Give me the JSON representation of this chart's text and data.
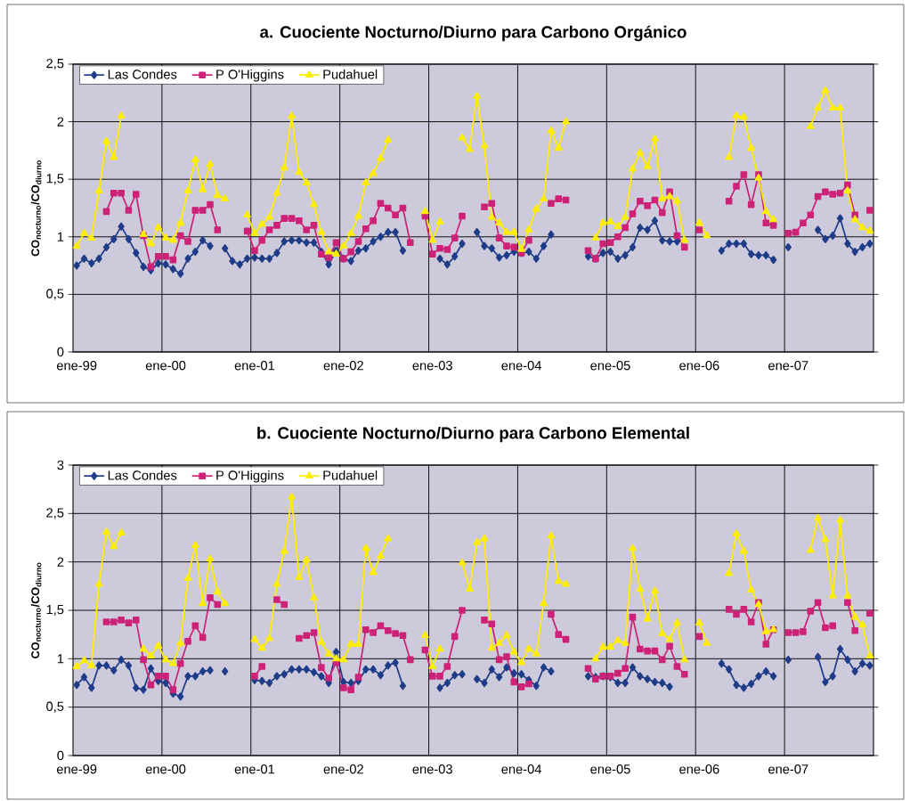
{
  "chart_data": [
    {
      "type": "line",
      "title": "a. Cuociente Nocturno/Diurno para Carbono Orgánico",
      "ylabel": "CO$_{nocturno}$/CO$_{diurno}$",
      "categories": [
        "ene-99",
        null,
        null,
        null,
        null,
        null,
        null,
        null,
        null,
        null,
        null,
        null,
        "ene-00",
        null,
        null,
        null,
        null,
        null,
        null,
        null,
        null,
        null,
        null,
        null,
        "ene-01",
        null,
        null,
        null,
        null,
        null,
        null,
        null,
        null,
        null,
        null,
        null,
        "ene-02",
        null,
        null,
        null,
        null,
        null,
        null,
        null,
        null,
        null,
        null,
        null,
        "ene-03",
        null,
        null,
        null,
        null,
        null,
        null,
        null,
        null,
        null,
        null,
        null,
        "ene-04",
        null,
        null,
        null,
        null,
        null,
        null,
        null,
        null,
        null,
        null,
        null,
        "ene-05",
        null,
        null,
        null,
        null,
        null,
        null,
        null,
        null,
        null,
        null,
        null,
        "ene-06",
        null,
        null,
        null,
        null,
        null,
        null,
        null,
        null,
        null,
        null,
        null,
        "ene-07",
        null,
        null,
        null,
        null,
        null,
        null,
        null,
        null,
        null,
        null,
        null
      ],
      "ylim": [
        0,
        2.5
      ],
      "yticks": [
        0,
        {
          "value": 0.5,
          "label": "0,5"
        },
        1,
        {
          "value": 1.5,
          "label": "1,5"
        },
        2,
        {
          "value": 2.5,
          "label": "2,5"
        }
      ],
      "grid": true,
      "legend": "top left",
      "line_style": "solid",
      "series": [
        {
          "name": "Las Condes",
          "color": "#1f3c88",
          "marker": "diamond",
          "values": [
            0.75,
            0.81,
            0.77,
            0.81,
            0.91,
            0.98,
            1.09,
            0.98,
            0.86,
            0.74,
            0.71,
            0.77,
            0.76,
            0.72,
            0.68,
            0.81,
            0.87,
            0.97,
            0.92,
            null,
            0.9,
            0.79,
            0.76,
            0.81,
            0.82,
            0.81,
            0.81,
            0.86,
            0.96,
            0.97,
            0.97,
            0.95,
            0.95,
            0.87,
            0.76,
            0.88,
            0.81,
            0.79,
            0.88,
            0.9,
            0.96,
            1.0,
            1.04,
            1.04,
            0.88,
            null,
            null,
            null,
            null,
            0.81,
            0.76,
            0.83,
            0.94,
            null,
            1.04,
            0.92,
            0.9,
            0.82,
            0.84,
            0.87,
            0.86,
            0.87,
            0.81,
            0.92,
            1.02,
            null,
            null,
            null,
            null,
            0.83,
            0.81,
            0.86,
            0.87,
            0.81,
            0.84,
            0.91,
            1.08,
            1.06,
            1.14,
            0.97,
            0.96,
            0.96,
            null,
            null,
            null,
            null,
            null,
            0.88,
            0.94,
            0.94,
            0.94,
            0.85,
            0.84,
            0.84,
            0.8,
            null,
            0.91,
            null,
            null,
            null,
            1.06,
            0.98,
            1.01,
            1.16,
            0.94,
            0.87,
            0.91,
            0.94
          ]
        },
        {
          "name": "P O'Higgins",
          "color": "#cc2277",
          "marker": "square",
          "values": [
            null,
            null,
            null,
            null,
            1.22,
            1.38,
            1.38,
            1.23,
            1.37,
            1.01,
            0.74,
            0.83,
            0.83,
            0.8,
            1.01,
            0.96,
            1.23,
            1.23,
            1.28,
            1.06,
            null,
            null,
            null,
            1.05,
            0.88,
            0.97,
            1.06,
            1.1,
            1.16,
            1.16,
            1.14,
            1.06,
            1.1,
            0.85,
            0.82,
            0.95,
            0.81,
            0.87,
            0.96,
            1.07,
            1.14,
            1.29,
            1.25,
            1.19,
            1.25,
            0.95,
            null,
            1.18,
            0.85,
            0.9,
            0.89,
            0.99,
            1.18,
            null,
            null,
            1.26,
            1.29,
            0.99,
            0.92,
            0.91,
            0.86,
            0.97,
            null,
            null,
            1.29,
            1.33,
            1.32,
            null,
            null,
            0.88,
            0.81,
            0.94,
            0.95,
            1.0,
            1.08,
            1.2,
            1.31,
            1.27,
            1.32,
            1.21,
            1.39,
            1.01,
            0.91,
            null,
            1.06,
            null,
            null,
            null,
            1.31,
            1.44,
            1.54,
            1.28,
            1.54,
            1.12,
            1.1,
            null,
            1.03,
            1.04,
            1.12,
            1.19,
            1.35,
            1.39,
            1.37,
            1.38,
            1.45,
            1.19,
            null,
            1.23
          ]
        },
        {
          "name": "Pudahuel",
          "color": "#ffee00",
          "marker": "triangle",
          "values": [
            0.92,
            1.03,
            0.99,
            1.4,
            1.83,
            1.69,
            2.05,
            null,
            null,
            1.02,
            0.94,
            1.08,
            0.99,
            0.97,
            1.12,
            1.4,
            1.67,
            1.41,
            1.63,
            1.36,
            1.33,
            null,
            null,
            1.19,
            1.03,
            1.11,
            1.17,
            1.38,
            1.6,
            2.05,
            1.56,
            1.47,
            1.28,
            1.04,
            0.87,
            0.85,
            0.92,
            1.03,
            1.18,
            1.47,
            1.55,
            1.68,
            1.84,
            null,
            null,
            null,
            null,
            1.22,
            0.97,
            1.13,
            null,
            null,
            1.86,
            1.76,
            2.22,
            1.79,
            1.17,
            1.12,
            1.04,
            1.04,
            0.89,
            1.06,
            1.24,
            1.33,
            1.92,
            1.77,
            2.0,
            null,
            null,
            null,
            0.99,
            1.12,
            1.13,
            1.09,
            1.17,
            1.59,
            1.73,
            1.61,
            1.85,
            1.33,
            1.35,
            1.31,
            0.97,
            null,
            1.12,
            1.01,
            null,
            null,
            1.69,
            2.05,
            2.04,
            1.77,
            1.51,
            1.22,
            1.15,
            null,
            null,
            null,
            null,
            1.96,
            2.12,
            2.27,
            2.12,
            2.12,
            1.4,
            1.15,
            1.08,
            1.05
          ]
        }
      ]
    },
    {
      "type": "line",
      "title": "b. Cuociente Nocturno/Diurno para Carbono Elemental",
      "ylabel": "CO$_{nocturno}$/CO$_{diurno}$",
      "categories": [
        "ene-99",
        null,
        null,
        null,
        null,
        null,
        null,
        null,
        null,
        null,
        null,
        null,
        "ene-00",
        null,
        null,
        null,
        null,
        null,
        null,
        null,
        null,
        null,
        null,
        null,
        "ene-01",
        null,
        null,
        null,
        null,
        null,
        null,
        null,
        null,
        null,
        null,
        null,
        "ene-02",
        null,
        null,
        null,
        null,
        null,
        null,
        null,
        null,
        null,
        null,
        null,
        "ene-03",
        null,
        null,
        null,
        null,
        null,
        null,
        null,
        null,
        null,
        null,
        null,
        "ene-04",
        null,
        null,
        null,
        null,
        null,
        null,
        null,
        null,
        null,
        null,
        null,
        "ene-05",
        null,
        null,
        null,
        null,
        null,
        null,
        null,
        null,
        null,
        null,
        null,
        "ene-06",
        null,
        null,
        null,
        null,
        null,
        null,
        null,
        null,
        null,
        null,
        null,
        "ene-07",
        null,
        null,
        null,
        null,
        null,
        null,
        null,
        null,
        null,
        null,
        null
      ],
      "ylim": [
        0,
        3
      ],
      "yticks": [
        0,
        {
          "value": 0.5,
          "label": "0,5"
        },
        1,
        {
          "value": 1.5,
          "label": "1,5"
        },
        2,
        {
          "value": 2.5,
          "label": "2,5"
        },
        3
      ],
      "grid": true,
      "legend": "top left",
      "line_style": "solid",
      "series": [
        {
          "name": "Las Condes",
          "color": "#1f3c88",
          "marker": "diamond",
          "values": [
            0.73,
            0.81,
            0.7,
            0.93,
            0.93,
            0.88,
            0.99,
            0.93,
            0.7,
            0.68,
            0.9,
            0.77,
            0.75,
            0.64,
            0.61,
            0.82,
            0.82,
            0.87,
            0.88,
            null,
            0.87,
            null,
            null,
            null,
            0.78,
            0.77,
            0.75,
            0.82,
            0.84,
            0.89,
            0.89,
            0.89,
            0.86,
            0.82,
            0.75,
            1.07,
            0.76,
            0.75,
            0.77,
            0.89,
            0.89,
            0.83,
            0.93,
            0.96,
            0.72,
            null,
            null,
            null,
            null,
            0.7,
            0.75,
            0.83,
            0.84,
            null,
            0.79,
            0.75,
            0.89,
            0.81,
            0.91,
            0.85,
            0.84,
            0.78,
            0.72,
            0.91,
            0.87,
            null,
            null,
            null,
            null,
            0.82,
            0.81,
            0.82,
            0.81,
            0.75,
            0.75,
            0.91,
            0.82,
            0.79,
            0.76,
            0.75,
            0.71,
            null,
            null,
            null,
            null,
            null,
            null,
            0.95,
            0.89,
            0.73,
            0.7,
            0.74,
            0.82,
            0.87,
            0.82,
            null,
            0.99,
            null,
            null,
            null,
            1.02,
            0.76,
            0.82,
            1.1,
            0.99,
            0.87,
            0.95,
            0.93
          ]
        },
        {
          "name": "P O'Higgins",
          "color": "#cc2277",
          "marker": "square",
          "values": [
            null,
            null,
            null,
            null,
            1.38,
            1.38,
            1.4,
            1.37,
            1.4,
            0.99,
            0.73,
            0.82,
            0.82,
            0.68,
            0.95,
            1.18,
            1.34,
            1.22,
            1.63,
            1.56,
            null,
            null,
            null,
            null,
            0.82,
            0.92,
            null,
            1.61,
            1.56,
            null,
            1.21,
            1.24,
            1.27,
            0.91,
            0.8,
            0.96,
            0.7,
            0.68,
            0.81,
            1.3,
            1.27,
            1.34,
            1.29,
            1.26,
            1.24,
            0.99,
            null,
            1.09,
            0.82,
            0.82,
            0.92,
            1.23,
            1.5,
            null,
            null,
            1.4,
            1.36,
            0.99,
            1.02,
            0.76,
            0.71,
            0.74,
            null,
            null,
            1.46,
            1.25,
            1.2,
            null,
            null,
            0.9,
            0.79,
            0.82,
            0.82,
            0.85,
            0.9,
            1.43,
            1.1,
            1.08,
            1.08,
            0.99,
            1.13,
            0.92,
            0.84,
            null,
            1.23,
            null,
            null,
            null,
            1.51,
            1.46,
            1.51,
            1.38,
            1.58,
            1.15,
            1.3,
            null,
            1.27,
            1.27,
            1.28,
            1.49,
            1.58,
            1.32,
            1.34,
            null,
            1.58,
            1.29,
            null,
            1.47
          ]
        },
        {
          "name": "Pudahuel",
          "color": "#ffee00",
          "marker": "triangle",
          "values": [
            0.92,
            0.98,
            0.93,
            1.77,
            2.31,
            2.16,
            2.3,
            null,
            null,
            1.1,
            1.03,
            1.13,
            0.99,
            0.95,
            1.16,
            1.83,
            2.17,
            1.57,
            2.03,
            1.69,
            1.57,
            null,
            null,
            null,
            1.2,
            1.11,
            1.21,
            1.77,
            2.11,
            2.67,
            1.84,
            2.02,
            1.63,
            1.17,
            1.05,
            1.0,
            0.99,
            1.15,
            1.15,
            2.14,
            1.89,
            2.06,
            2.24,
            null,
            null,
            null,
            null,
            1.24,
            0.92,
            1.1,
            null,
            null,
            1.99,
            1.72,
            2.2,
            2.24,
            1.11,
            1.16,
            1.24,
            1.07,
            0.96,
            1.1,
            1.05,
            1.57,
            2.27,
            1.8,
            1.77,
            null,
            null,
            null,
            1.0,
            1.12,
            1.12,
            1.19,
            1.16,
            2.14,
            1.72,
            1.41,
            1.7,
            1.26,
            1.2,
            1.37,
            0.99,
            null,
            1.37,
            1.16,
            null,
            null,
            1.88,
            2.29,
            2.11,
            1.71,
            1.56,
            1.28,
            1.3,
            null,
            null,
            null,
            null,
            2.12,
            2.45,
            2.23,
            1.65,
            2.43,
            1.65,
            1.43,
            1.35,
            1.03
          ]
        }
      ]
    }
  ]
}
